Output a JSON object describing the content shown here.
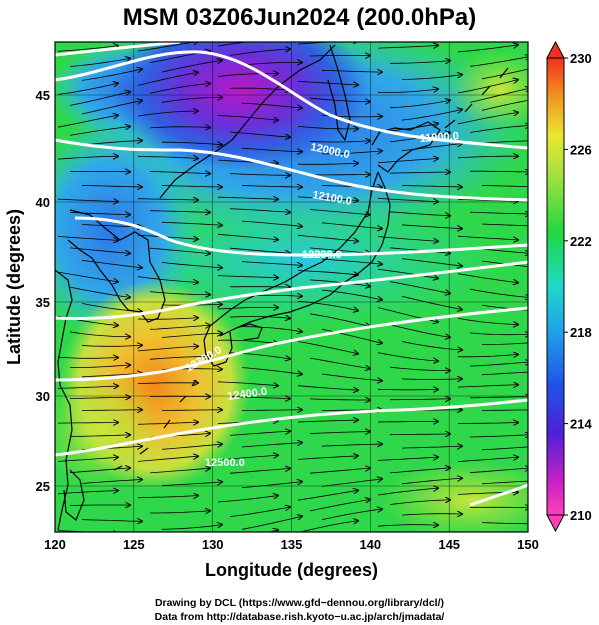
{
  "title": "MSM 03Z06Jun2024 (200.0hPa)",
  "axes": {
    "xlabel": "Longitude (degrees)",
    "ylabel": "Latitude  (degrees)",
    "xticks": [
      "120",
      "125",
      "130",
      "135",
      "140",
      "145",
      "150"
    ],
    "yticks": [
      "25",
      "30",
      "35",
      "40",
      "45"
    ]
  },
  "colorbar": {
    "ticks": [
      "210",
      "214",
      "218",
      "222",
      "226",
      "230"
    ]
  },
  "contour_labels": [
    "11900.0",
    "12000.0",
    "12100.0",
    "12200.0",
    "12300.0",
    "12400.0",
    "12500.0"
  ],
  "credits": {
    "line1": "Drawing by DCL (https://www.gfd−dennou.org/library/dcl/)",
    "line2": "Data from http://database.rish.kyoto−u.ac.jp/arch/jmadata/"
  },
  "colors": {
    "background_field": "#2fd84a",
    "cold_core": "#c020c0",
    "warm_core": "#f0a020",
    "contour_line": "#ffffff",
    "coastline": "#000000"
  }
}
